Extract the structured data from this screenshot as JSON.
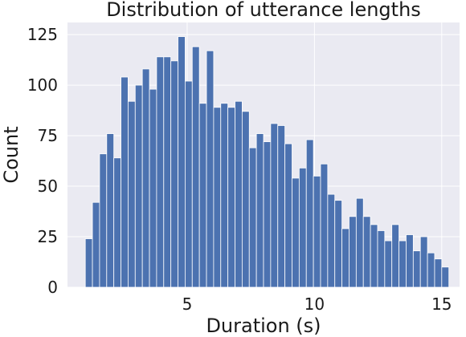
{
  "chart_data": {
    "type": "bar",
    "title": "Distribution of utterance lengths",
    "xlabel": "Duration (s)",
    "ylabel": "Count",
    "xlim": [
      0.3,
      15.7
    ],
    "ylim": [
      0,
      131
    ],
    "xticks": [
      5,
      10,
      15
    ],
    "yticks": [
      0,
      25,
      50,
      75,
      100,
      125
    ],
    "grid": true,
    "bar_color": "#4c72b0",
    "background_color": "#eaeaf2",
    "bin_start": 1.0,
    "bin_width": 0.28,
    "values": [
      24,
      42,
      66,
      76,
      64,
      104,
      92,
      100,
      108,
      98,
      114,
      114,
      112,
      124,
      102,
      119,
      91,
      117,
      89,
      91,
      89,
      92,
      87,
      69,
      76,
      72,
      81,
      80,
      71,
      54,
      59,
      73,
      55,
      61,
      46,
      43,
      29,
      35,
      44,
      35,
      31,
      28,
      23,
      31,
      23,
      26,
      18,
      25,
      17,
      14,
      10
    ]
  }
}
